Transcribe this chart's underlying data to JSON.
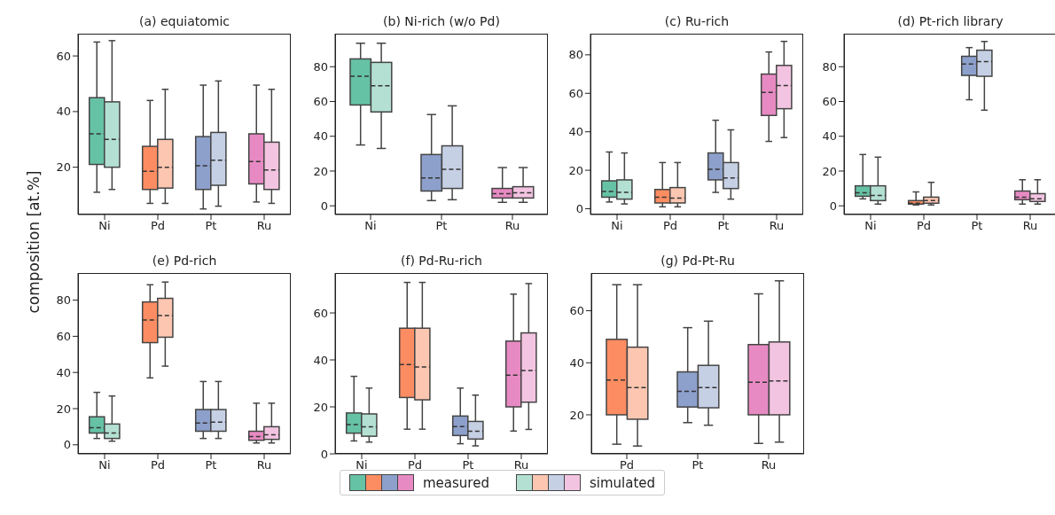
{
  "chart_data": [
    {
      "type": "box",
      "title": "(a) equiatomic",
      "ylabel": "composition [at.%]",
      "legend": "bottom",
      "categories": [
        "Ni",
        "Pd",
        "Pt",
        "Ru"
      ],
      "ylim": [
        3,
        68
      ],
      "yticks": [
        20,
        40,
        60
      ],
      "series": [
        {
          "name": "measured",
          "colors": [
            "#66c2a5",
            "#fc8d62",
            "#8da0cb",
            "#e78ac3"
          ],
          "boxes": [
            {
              "low": 11,
              "q1": 21,
              "median": 32,
              "q3": 45,
              "high": 65
            },
            {
              "low": 7,
              "q1": 12,
              "median": 18.5,
              "q3": 27.5,
              "high": 44
            },
            {
              "low": 5,
              "q1": 12,
              "median": 20.5,
              "q3": 31,
              "high": 49.5
            },
            {
              "low": 7.5,
              "q1": 14,
              "median": 22,
              "q3": 32,
              "high": 49.5
            }
          ]
        },
        {
          "name": "simulated",
          "colors": [
            "#b3e0d2",
            "#fdc6b0",
            "#c6d0e5",
            "#f3c4e1"
          ],
          "boxes": [
            {
              "low": 12,
              "q1": 20,
              "median": 30,
              "q3": 43.5,
              "high": 65.5
            },
            {
              "low": 7,
              "q1": 12.5,
              "median": 20,
              "q3": 30,
              "high": 48
            },
            {
              "low": 6,
              "q1": 13.5,
              "median": 22.5,
              "q3": 32.5,
              "high": 51
            },
            {
              "low": 7,
              "q1": 12,
              "median": 19,
              "q3": 29,
              "high": 48
            }
          ]
        }
      ]
    },
    {
      "type": "box",
      "title": "(b) Ni-rich (w/o Pd)",
      "categories": [
        "Ni",
        "Pt",
        "Ru"
      ],
      "ylim": [
        -5,
        99
      ],
      "yticks": [
        0,
        20,
        40,
        60,
        80
      ],
      "series": [
        {
          "colors": [
            "#66c2a5",
            "#8da0cb",
            "#e78ac3"
          ],
          "boxes": [
            {
              "low": 35,
              "q1": 58,
              "median": 74.5,
              "q3": 84.5,
              "high": 93.5
            },
            {
              "low": 3,
              "q1": 8.5,
              "median": 16,
              "q3": 29.5,
              "high": 52.5
            },
            {
              "low": 2,
              "q1": 4.5,
              "median": 7,
              "q3": 10,
              "high": 22
            }
          ]
        },
        {
          "colors": [
            "#b3e0d2",
            "#c6d0e5",
            "#f3c4e1"
          ],
          "boxes": [
            {
              "low": 33,
              "q1": 54,
              "median": 69,
              "q3": 82.5,
              "high": 93.5
            },
            {
              "low": 3.5,
              "q1": 10,
              "median": 21,
              "q3": 34.5,
              "high": 57.5
            },
            {
              "low": 2,
              "q1": 4.5,
              "median": 7.5,
              "q3": 11,
              "high": 22
            }
          ]
        }
      ]
    },
    {
      "type": "box",
      "title": "(c) Ru-rich",
      "categories": [
        "Ni",
        "Pd",
        "Pt",
        "Ru"
      ],
      "ylim": [
        -3,
        91
      ],
      "yticks": [
        0,
        20,
        40,
        60,
        80
      ],
      "series": [
        {
          "colors": [
            "#66c2a5",
            "#fc8d62",
            "#8da0cb",
            "#e78ac3"
          ],
          "boxes": [
            {
              "low": 3.5,
              "q1": 6,
              "median": 9,
              "q3": 14.5,
              "high": 29.5
            },
            {
              "low": 1,
              "q1": 3,
              "median": 6,
              "q3": 10,
              "high": 24
            },
            {
              "low": 8.5,
              "q1": 15,
              "median": 20.5,
              "q3": 29,
              "high": 46
            },
            {
              "low": 35,
              "q1": 48.5,
              "median": 60.5,
              "q3": 70,
              "high": 81.5
            }
          ]
        },
        {
          "colors": [
            "#b3e0d2",
            "#fdc6b0",
            "#c6d0e5",
            "#f3c4e1"
          ],
          "boxes": [
            {
              "low": 2.5,
              "q1": 5,
              "median": 8.5,
              "q3": 15,
              "high": 29
            },
            {
              "low": 1,
              "q1": 3,
              "median": 5.5,
              "q3": 11,
              "high": 24
            },
            {
              "low": 5,
              "q1": 10.5,
              "median": 16,
              "q3": 24,
              "high": 41
            },
            {
              "low": 37,
              "q1": 52,
              "median": 64,
              "q3": 74.5,
              "high": 87
            }
          ]
        }
      ]
    },
    {
      "type": "box",
      "title": "(d) Pt-rich library",
      "categories": [
        "Ni",
        "Pd",
        "Pt",
        "Ru"
      ],
      "ylim": [
        -5,
        99
      ],
      "yticks": [
        0,
        20,
        40,
        60,
        80
      ],
      "series": [
        {
          "colors": [
            "#66c2a5",
            "#fc8d62",
            "#8da0cb",
            "#e78ac3"
          ],
          "boxes": [
            {
              "low": 4,
              "q1": 5.5,
              "median": 7.5,
              "q3": 11.5,
              "high": 29.5
            },
            {
              "low": 0.5,
              "q1": 1,
              "median": 1.5,
              "q3": 3,
              "high": 8
            },
            {
              "low": 61,
              "q1": 75,
              "median": 81.5,
              "q3": 86,
              "high": 91
            },
            {
              "low": 1,
              "q1": 3.5,
              "median": 5,
              "q3": 8.5,
              "high": 15
            }
          ]
        },
        {
          "colors": [
            "#b3e0d2",
            "#fdc6b0",
            "#c6d0e5",
            "#f3c4e1"
          ],
          "boxes": [
            {
              "low": 1,
              "q1": 3,
              "median": 6,
              "q3": 11.5,
              "high": 28
            },
            {
              "low": 0.5,
              "q1": 1.5,
              "median": 3,
              "q3": 5,
              "high": 13.5
            },
            {
              "low": 55,
              "q1": 74.5,
              "median": 83,
              "q3": 89.5,
              "high": 94.5
            },
            {
              "low": 1,
              "q1": 2.5,
              "median": 4,
              "q3": 7,
              "high": 15
            }
          ]
        }
      ]
    },
    {
      "type": "box",
      "title": "(e) Pd-rich",
      "categories": [
        "Ni",
        "Pd",
        "Pt",
        "Ru"
      ],
      "ylim": [
        -5,
        95
      ],
      "yticks": [
        0,
        20,
        40,
        60,
        80
      ],
      "series": [
        {
          "colors": [
            "#66c2a5",
            "#fc8d62",
            "#8da0cb",
            "#e78ac3"
          ],
          "boxes": [
            {
              "low": 3.5,
              "q1": 6.5,
              "median": 9.5,
              "q3": 15.5,
              "high": 29
            },
            {
              "low": 37,
              "q1": 56.5,
              "median": 69,
              "q3": 79,
              "high": 88.5
            },
            {
              "low": 3.5,
              "q1": 7.5,
              "median": 12,
              "q3": 19.5,
              "high": 35
            },
            {
              "low": 1,
              "q1": 2.5,
              "median": 4.5,
              "q3": 7.5,
              "high": 23
            }
          ]
        },
        {
          "colors": [
            "#b3e0d2",
            "#fdc6b0",
            "#c6d0e5",
            "#f3c4e1"
          ],
          "boxes": [
            {
              "low": 2,
              "q1": 3.5,
              "median": 6.5,
              "q3": 11.5,
              "high": 27
            },
            {
              "low": 43.5,
              "q1": 59.5,
              "median": 71.5,
              "q3": 81,
              "high": 90
            },
            {
              "low": 3.5,
              "q1": 7.5,
              "median": 12.5,
              "q3": 19.5,
              "high": 35
            },
            {
              "low": 1,
              "q1": 3,
              "median": 5.5,
              "q3": 10,
              "high": 23
            }
          ]
        }
      ]
    },
    {
      "type": "box",
      "title": "(f) Pd-Ru-rich",
      "categories": [
        "Ni",
        "Pd",
        "Pt",
        "Ru"
      ],
      "ylim": [
        0,
        77
      ],
      "yticks": [
        0,
        20,
        40,
        60
      ],
      "series": [
        {
          "colors": [
            "#66c2a5",
            "#fc8d62",
            "#8da0cb",
            "#e78ac3"
          ],
          "boxes": [
            {
              "low": 5.5,
              "q1": 8.8,
              "median": 12.5,
              "q3": 17.4,
              "high": 33
            },
            {
              "low": 10.5,
              "q1": 24,
              "median": 38,
              "q3": 53.5,
              "high": 73
            },
            {
              "low": 4.3,
              "q1": 7.8,
              "median": 11.6,
              "q3": 16.1,
              "high": 28
            },
            {
              "low": 9.7,
              "q1": 20,
              "median": 33.5,
              "q3": 48,
              "high": 68
            }
          ]
        },
        {
          "colors": [
            "#b3e0d2",
            "#fdc6b0",
            "#c6d0e5",
            "#f3c4e1"
          ],
          "boxes": [
            {
              "low": 5,
              "q1": 7.5,
              "median": 11.5,
              "q3": 17,
              "high": 28
            },
            {
              "low": 10.5,
              "q1": 23,
              "median": 37,
              "q3": 53.5,
              "high": 73
            },
            {
              "low": 3.4,
              "q1": 6.3,
              "median": 9.6,
              "q3": 13.8,
              "high": 25
            },
            {
              "low": 10.4,
              "q1": 22,
              "median": 35.5,
              "q3": 51.5,
              "high": 72.5
            }
          ]
        }
      ]
    },
    {
      "type": "box",
      "title": "(g) Pd-Pt-Ru",
      "categories": [
        "Pd",
        "Pt",
        "Ru"
      ],
      "ylim": [
        5,
        74.5
      ],
      "yticks": [
        20,
        40,
        60
      ],
      "series": [
        {
          "colors": [
            "#fc8d62",
            "#8da0cb",
            "#e78ac3"
          ],
          "boxes": [
            {
              "low": 8.7,
              "q1": 20,
              "median": 33.4,
              "q3": 49,
              "high": 70
            },
            {
              "low": 17,
              "q1": 23,
              "median": 29,
              "q3": 36.5,
              "high": 53.5
            },
            {
              "low": 9,
              "q1": 20,
              "median": 32.5,
              "q3": 47,
              "high": 66.5
            }
          ]
        },
        {
          "colors": [
            "#fdc6b0",
            "#c6d0e5",
            "#f3c4e1"
          ],
          "boxes": [
            {
              "low": 8,
              "q1": 18.3,
              "median": 30.5,
              "q3": 46,
              "high": 70
            },
            {
              "low": 16,
              "q1": 22.7,
              "median": 30.5,
              "q3": 39,
              "high": 56
            },
            {
              "low": 9.5,
              "q1": 20,
              "median": 33,
              "q3": 48,
              "high": 71.5
            }
          ]
        }
      ]
    }
  ]
}
